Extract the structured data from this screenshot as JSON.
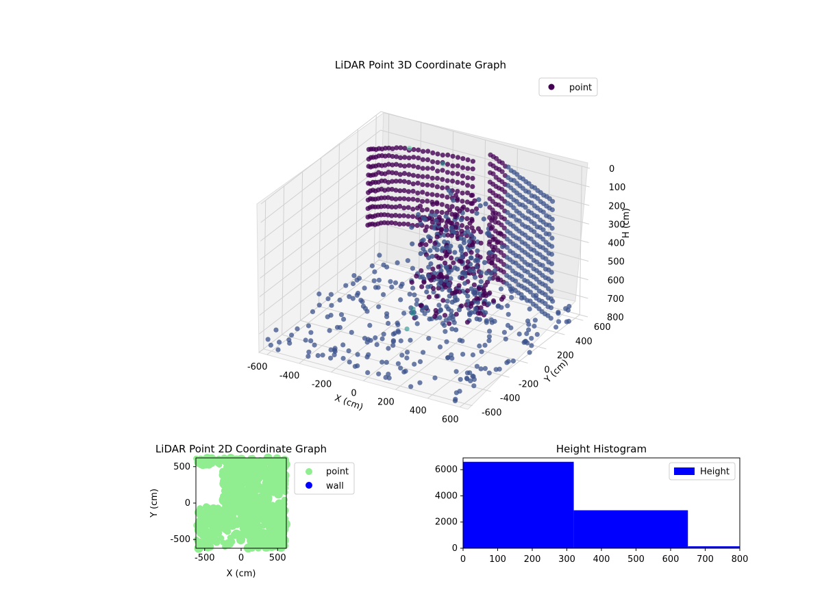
{
  "chart_data": [
    {
      "type": "scatter",
      "projection": "3d",
      "title": "LiDAR Point 3D Coordinate Graph",
      "xlabel": "X (cm)",
      "ylabel": "Y (cm)",
      "zlabel": "H (cm)",
      "xlim": [
        -650,
        650
      ],
      "ylim": [
        -650,
        650
      ],
      "zlim": [
        800,
        0
      ],
      "z_inverted": true,
      "x_ticks": [
        "-600",
        "-400",
        "-200",
        "0",
        "200",
        "400",
        "600"
      ],
      "y_ticks": [
        "-600",
        "-400",
        "-200",
        "0",
        "200",
        "400",
        "600"
      ],
      "z_ticks": [
        "0",
        "100",
        "200",
        "300",
        "400",
        "500",
        "600",
        "700",
        "800"
      ],
      "grid": true,
      "legend": {
        "entries": [
          "point"
        ],
        "placement": "upper-right"
      },
      "colors": {
        "point": "#440154",
        "mid": "#3b528b",
        "high": "#21918c",
        "outlier": "#5ec9a7"
      },
      "series": [
        {
          "name": "point",
          "description_free": true,
          "clusters": {
            "ring_wall_left": {
              "x": [
                -620,
                -100
              ],
              "y": [
                250,
                620
              ],
              "z": [
                50,
                550
              ]
            },
            "ring_wall_right": {
              "x": [
                100,
                640
              ],
              "y": [
                -200,
                600
              ],
              "z": [
                50,
                700
              ]
            },
            "dense_mass": {
              "x": [
                -50,
                350
              ],
              "y": [
                -100,
                250
              ],
              "z": [
                100,
                700
              ]
            },
            "floor_scatter": {
              "x": [
                -650,
                650
              ],
              "y": [
                -650,
                650
              ],
              "z": [
                700,
                800
              ]
            }
          }
        }
      ]
    },
    {
      "type": "scatter",
      "title": "LiDAR Point 2D Coordinate Graph",
      "xlabel": "X (cm)",
      "ylabel": "Y (cm)",
      "xlim": [
        -620,
        620
      ],
      "ylim": [
        -620,
        620
      ],
      "x_ticks": [
        "-500",
        "0",
        "500"
      ],
      "y_ticks": [
        "500",
        "0",
        "-500"
      ],
      "legend": {
        "entries": [
          "point",
          "wall"
        ],
        "placement": "outside-right"
      },
      "colors": {
        "point": "#90ee90",
        "wall": "#0000ff"
      },
      "series": [
        {
          "name": "point"
        },
        {
          "name": "wall"
        }
      ]
    },
    {
      "type": "bar",
      "title": "Height Histogram",
      "xlabel": "",
      "ylabel": "",
      "xlim": [
        0,
        800
      ],
      "ylim": [
        0,
        6900
      ],
      "bin_edges": [
        0,
        320,
        650,
        800
      ],
      "values": [
        6600,
        2900,
        150
      ],
      "x_ticks": [
        "0",
        "100",
        "200",
        "300",
        "400",
        "500",
        "600",
        "700",
        "800"
      ],
      "y_ticks": [
        "0",
        "2000",
        "4000",
        "6000"
      ],
      "legend": {
        "entries": [
          "Height"
        ],
        "placement": "top-right"
      },
      "colors": {
        "bar": "#0000ff"
      },
      "series": [
        {
          "name": "Height",
          "values": [
            6600,
            2900,
            150
          ]
        }
      ]
    }
  ]
}
